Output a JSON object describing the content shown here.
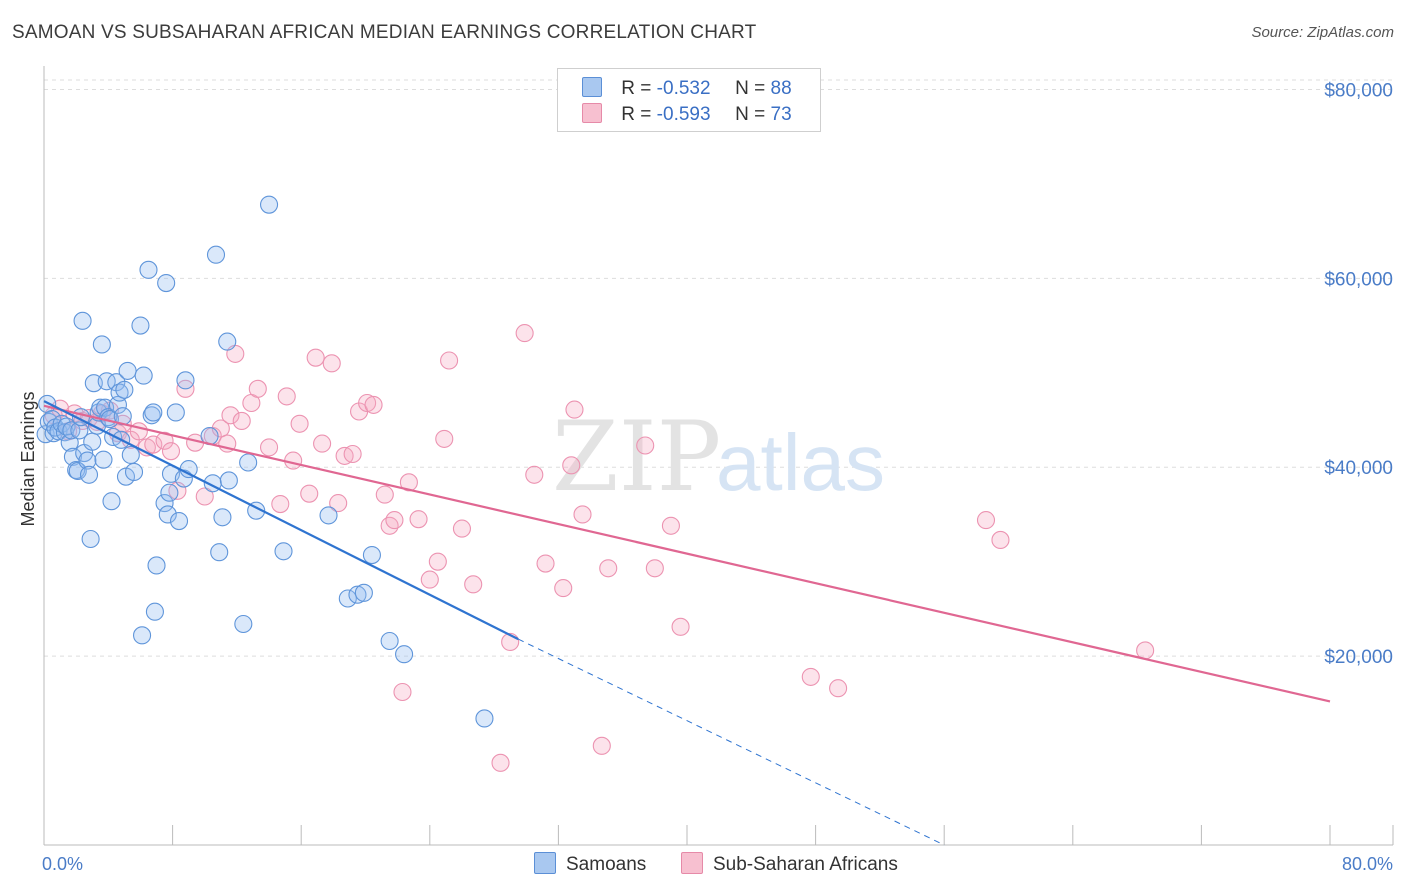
{
  "title": "SAMOAN VS SUBSAHARAN AFRICAN MEDIAN EARNINGS CORRELATION CHART",
  "source": "Source: ZipAtlas.com",
  "watermark": {
    "zip": "ZIP",
    "atlas": "atlas"
  },
  "legend": {
    "r_label": "R =",
    "n_label": "N =",
    "rows": [
      {
        "r": "-0.532",
        "n": "88",
        "color": "#a9c8f0",
        "border": "#5b8fd6"
      },
      {
        "r": "-0.593",
        "n": "73",
        "color": "#f7c0d0",
        "border": "#e68aa8"
      }
    ]
  },
  "bottom_legend": [
    {
      "label": "Samoans",
      "color": "#a9c8f0",
      "border": "#5b8fd6"
    },
    {
      "label": "Sub-Saharan Africans",
      "color": "#f7c0d0",
      "border": "#e68aa8"
    }
  ],
  "chart_data": {
    "type": "scatter",
    "xlabel": "",
    "ylabel": "Median Earnings",
    "xlim": [
      0,
      80
    ],
    "ylim": [
      0,
      81000
    ],
    "x_tick_labels": [
      "0.0%",
      "80.0%"
    ],
    "y_ticks": [
      20000,
      40000,
      60000,
      80000
    ],
    "y_tick_labels": [
      "$20,000",
      "$40,000",
      "$60,000",
      "$80,000"
    ],
    "grid": true,
    "series": [
      {
        "name": "Samoans",
        "color": "#6a9fe0",
        "line_color": "#2f74d0",
        "trend": {
          "x0": 0,
          "y0": 47000,
          "x1": 29.5,
          "y1": 21800,
          "dash_to_x": 56,
          "dash_to_y": 0
        },
        "points": [
          [
            0.1,
            43500
          ],
          [
            0.2,
            46700
          ],
          [
            0.3,
            44800
          ],
          [
            0.5,
            45100
          ],
          [
            0.6,
            43600
          ],
          [
            0.7,
            44200
          ],
          [
            0.9,
            43800
          ],
          [
            1.1,
            44600
          ],
          [
            1.3,
            43700
          ],
          [
            1.4,
            44300
          ],
          [
            1.6,
            42600
          ],
          [
            1.7,
            43900
          ],
          [
            1.8,
            41100
          ],
          [
            2.0,
            39700
          ],
          [
            2.1,
            39600
          ],
          [
            2.2,
            43900
          ],
          [
            2.3,
            45300
          ],
          [
            2.4,
            55500
          ],
          [
            2.5,
            41500
          ],
          [
            2.7,
            40700
          ],
          [
            2.8,
            39200
          ],
          [
            2.9,
            32400
          ],
          [
            3.0,
            42700
          ],
          [
            3.1,
            48900
          ],
          [
            3.3,
            44400
          ],
          [
            3.4,
            45800
          ],
          [
            3.5,
            46300
          ],
          [
            3.6,
            53000
          ],
          [
            3.7,
            40800
          ],
          [
            3.8,
            46300
          ],
          [
            3.9,
            49100
          ],
          [
            4.0,
            45300
          ],
          [
            4.1,
            45100
          ],
          [
            4.2,
            36400
          ],
          [
            4.3,
            43200
          ],
          [
            4.5,
            49000
          ],
          [
            4.6,
            46600
          ],
          [
            4.7,
            47900
          ],
          [
            4.8,
            42900
          ],
          [
            4.9,
            45400
          ],
          [
            5.0,
            48200
          ],
          [
            5.1,
            39000
          ],
          [
            5.2,
            50200
          ],
          [
            5.4,
            41300
          ],
          [
            5.6,
            39500
          ],
          [
            6.0,
            55000
          ],
          [
            6.1,
            22200
          ],
          [
            6.2,
            49700
          ],
          [
            6.5,
            60900
          ],
          [
            6.7,
            45500
          ],
          [
            6.8,
            45800
          ],
          [
            6.9,
            24700
          ],
          [
            7.0,
            29600
          ],
          [
            7.5,
            36200
          ],
          [
            7.6,
            59500
          ],
          [
            7.7,
            35000
          ],
          [
            7.8,
            37300
          ],
          [
            7.9,
            39300
          ],
          [
            8.2,
            45800
          ],
          [
            8.4,
            34300
          ],
          [
            8.7,
            38800
          ],
          [
            8.8,
            49200
          ],
          [
            9.0,
            39800
          ],
          [
            10.3,
            43300
          ],
          [
            10.5,
            38300
          ],
          [
            10.7,
            62500
          ],
          [
            10.9,
            31000
          ],
          [
            11.1,
            34700
          ],
          [
            11.4,
            53300
          ],
          [
            11.5,
            38600
          ],
          [
            12.4,
            23400
          ],
          [
            12.7,
            40500
          ],
          [
            13.2,
            35400
          ],
          [
            14.0,
            67800
          ],
          [
            14.9,
            31100
          ],
          [
            17.7,
            34900
          ],
          [
            18.9,
            26100
          ],
          [
            19.5,
            26500
          ],
          [
            19.9,
            26700
          ],
          [
            20.4,
            30700
          ],
          [
            21.5,
            21600
          ],
          [
            22.4,
            20200
          ],
          [
            27.4,
            13400
          ]
        ]
      },
      {
        "name": "Sub-Saharan Africans",
        "color": "#f29bb7",
        "line_color": "#e06792",
        "trend": {
          "x0": 0,
          "y0": 46500,
          "x1": 80,
          "y1": 15200
        },
        "points": [
          [
            0.6,
            45500
          ],
          [
            1.0,
            46200
          ],
          [
            1.5,
            43800
          ],
          [
            1.9,
            45700
          ],
          [
            2.4,
            44900
          ],
          [
            2.8,
            45200
          ],
          [
            3.3,
            44800
          ],
          [
            3.6,
            45700
          ],
          [
            4.1,
            46000
          ],
          [
            4.6,
            43600
          ],
          [
            4.9,
            44600
          ],
          [
            5.4,
            42900
          ],
          [
            5.9,
            43800
          ],
          [
            6.4,
            42100
          ],
          [
            6.8,
            42400
          ],
          [
            7.5,
            42800
          ],
          [
            7.9,
            41700
          ],
          [
            8.3,
            37500
          ],
          [
            8.8,
            48300
          ],
          [
            9.4,
            42600
          ],
          [
            10.0,
            36900
          ],
          [
            10.5,
            43300
          ],
          [
            11.0,
            44100
          ],
          [
            11.4,
            42500
          ],
          [
            11.6,
            45500
          ],
          [
            11.9,
            52000
          ],
          [
            12.3,
            44900
          ],
          [
            12.9,
            46800
          ],
          [
            13.3,
            48300
          ],
          [
            14.0,
            42100
          ],
          [
            14.7,
            36100
          ],
          [
            15.1,
            47500
          ],
          [
            15.5,
            40700
          ],
          [
            15.9,
            44600
          ],
          [
            16.5,
            37200
          ],
          [
            16.9,
            51600
          ],
          [
            17.3,
            42500
          ],
          [
            17.9,
            51000
          ],
          [
            18.3,
            36200
          ],
          [
            18.7,
            41200
          ],
          [
            19.2,
            41400
          ],
          [
            19.6,
            45900
          ],
          [
            20.1,
            46800
          ],
          [
            20.5,
            46600
          ],
          [
            21.2,
            37100
          ],
          [
            21.5,
            33800
          ],
          [
            21.8,
            34400
          ],
          [
            22.3,
            16200
          ],
          [
            22.7,
            38400
          ],
          [
            23.3,
            34500
          ],
          [
            24.0,
            28100
          ],
          [
            24.5,
            30000
          ],
          [
            24.9,
            43000
          ],
          [
            25.2,
            51300
          ],
          [
            26.0,
            33500
          ],
          [
            26.7,
            27600
          ],
          [
            28.4,
            8700
          ],
          [
            29.0,
            21500
          ],
          [
            29.9,
            54200
          ],
          [
            30.5,
            39200
          ],
          [
            31.2,
            29800
          ],
          [
            32.3,
            27200
          ],
          [
            32.8,
            40200
          ],
          [
            33.0,
            46100
          ],
          [
            33.5,
            35000
          ],
          [
            34.7,
            10500
          ],
          [
            35.1,
            29300
          ],
          [
            37.4,
            42300
          ],
          [
            38.0,
            29300
          ],
          [
            39.0,
            33800
          ],
          [
            39.6,
            23100
          ],
          [
            47.7,
            17800
          ],
          [
            49.4,
            16600
          ],
          [
            58.6,
            34400
          ],
          [
            59.5,
            32300
          ],
          [
            68.5,
            20600
          ]
        ]
      }
    ]
  }
}
